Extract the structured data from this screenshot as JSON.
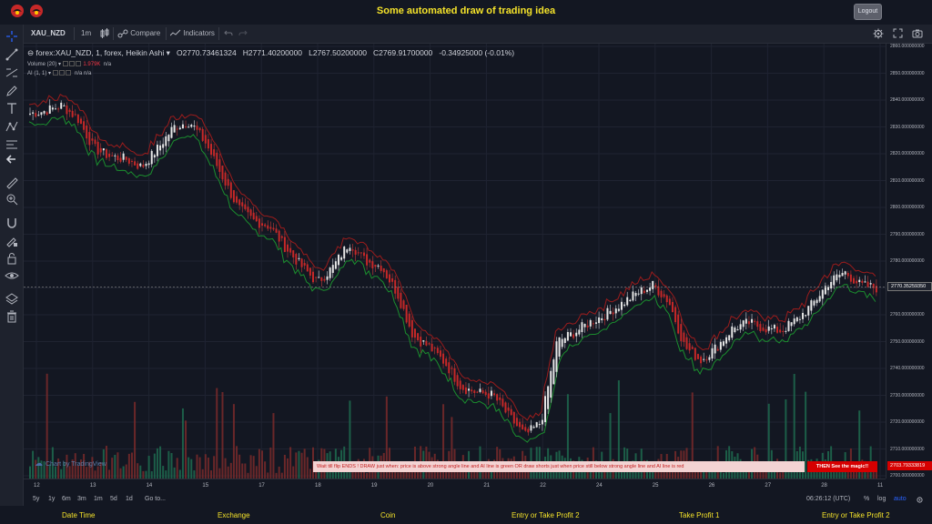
{
  "header": {
    "title": "Some automated draw of trading idea",
    "logout_label": "Logout"
  },
  "toolbar": {
    "symbol": "XAU_NZD",
    "interval": "1m",
    "compare_label": "Compare",
    "indicators_label": "Indicators"
  },
  "legend": {
    "title": "forex:XAU_NZD, 1, forex, Heikin Ashi",
    "open": "O2770.73461324",
    "high": "H2771.40200000",
    "low": "L2767.50200000",
    "close": "C2769.91700000",
    "change": "-0.34925000 (-0.01%)",
    "volume_label": "Volume (20)",
    "volume_value": "1.979K",
    "volume_na": "n/a",
    "ai_label": "AI (1, 1)",
    "ai_na": "n/a  n/a"
  },
  "watermark": "Chart by TradingView",
  "banner": {
    "text": "Wait till flip ENDS  !   DRAW just when:  price is above strong angle line and AI line is green        OR       draw shorts just when price still below strong angle line and AI line is red",
    "action": "THEN See the magic!!"
  },
  "price_axis": {
    "ticks": [
      "2860.000000000",
      "2850.000000000",
      "2840.000000000",
      "2830.000000000",
      "2820.000000000",
      "2810.000000000",
      "2800.000000000",
      "2790.000000000",
      "2780.000000000",
      "2770.000000000",
      "2760.000000000",
      "2750.000000000",
      "2740.000000000",
      "2730.000000000",
      "2720.000000000",
      "2710.000000000",
      "2700.000000000"
    ],
    "last_price": "2770.35259350",
    "red_price": "2703.79333819"
  },
  "time_axis": {
    "labels": [
      "12",
      "13",
      "14",
      "15",
      "17",
      "18",
      "19",
      "20",
      "21",
      "22",
      "24",
      "25",
      "26",
      "27",
      "28",
      "11"
    ]
  },
  "range_bar": {
    "ranges": [
      "5y",
      "1y",
      "6m",
      "3m",
      "1m",
      "5d",
      "1d"
    ],
    "goto": "Go to...",
    "clock": "06:26:12 (UTC)",
    "percent": "%",
    "log": "log",
    "auto": "auto"
  },
  "footer": {
    "columns": [
      "Date Time",
      "Exchange",
      "Coin",
      "Entry or Take Profit 2",
      "Take Profit 1",
      "Entry or Take Profit 2"
    ]
  },
  "colors": {
    "background": "#131722",
    "title": "#f5e32a",
    "up": "#26a69a",
    "down": "#ef5350",
    "ai_green": "#1b8e2e",
    "ai_red": "#9b1c1c"
  },
  "chart_data": {
    "type": "candlestick",
    "price_range": [
      2700,
      2860
    ],
    "close_path": [
      2835,
      2836,
      2838,
      2833,
      2822,
      2819,
      2818,
      2815,
      2822,
      2830,
      2832,
      2824,
      2812,
      2800,
      2795,
      2793,
      2785,
      2778,
      2772,
      2778,
      2787,
      2780,
      2778,
      2768,
      2752,
      2748,
      2742,
      2733,
      2731,
      2730,
      2722,
      2715,
      2720,
      2750,
      2753,
      2757,
      2760,
      2764,
      2768,
      2771,
      2765,
      2748,
      2743,
      2748,
      2755,
      2757,
      2755,
      2754,
      2758,
      2764,
      2772,
      2776,
      2771,
      2770
    ]
  }
}
